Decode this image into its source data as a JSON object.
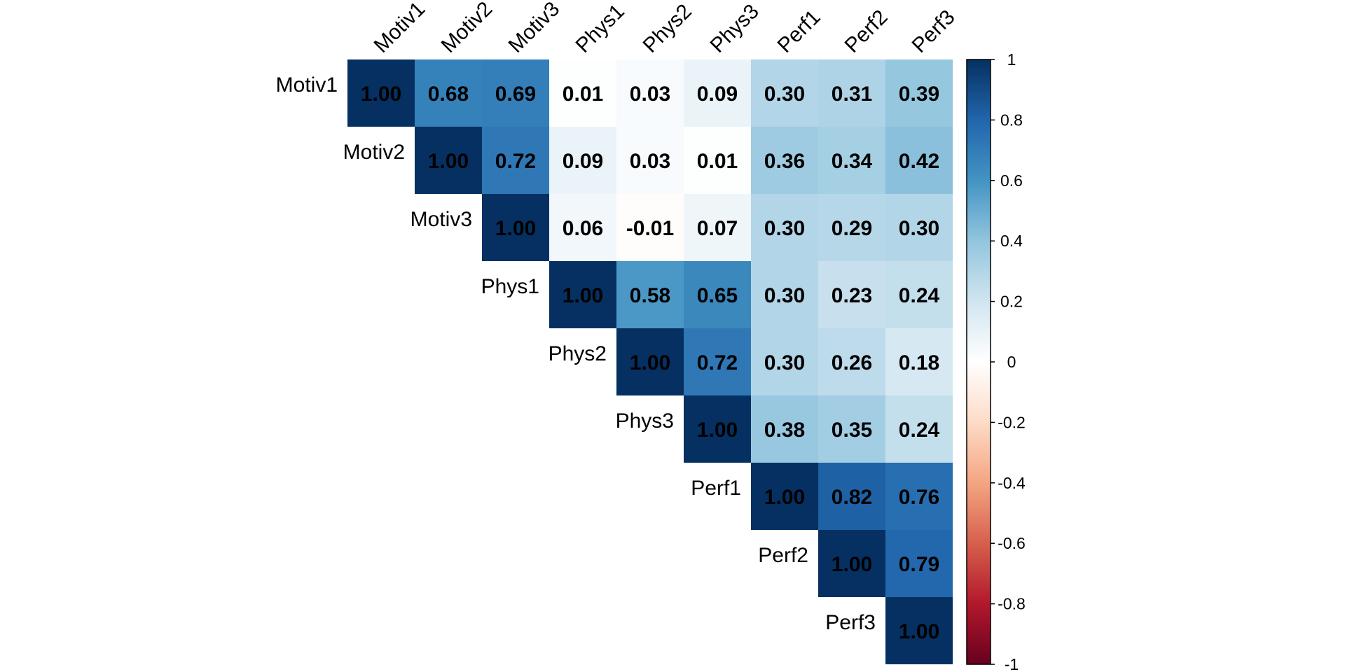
{
  "chart_data": {
    "type": "heatmap",
    "title": "",
    "variables": [
      "Motiv1",
      "Motiv2",
      "Motiv3",
      "Phys1",
      "Phys2",
      "Phys3",
      "Perf1",
      "Perf2",
      "Perf3"
    ],
    "layout": "upper-triangle",
    "matrix": [
      [
        1.0,
        0.68,
        0.69,
        0.01,
        0.03,
        0.09,
        0.3,
        0.31,
        0.39
      ],
      [
        null,
        1.0,
        0.72,
        0.09,
        0.03,
        0.01,
        0.36,
        0.34,
        0.42
      ],
      [
        null,
        null,
        1.0,
        0.06,
        -0.01,
        0.07,
        0.3,
        0.29,
        0.3
      ],
      [
        null,
        null,
        null,
        1.0,
        0.58,
        0.65,
        0.3,
        0.23,
        0.24
      ],
      [
        null,
        null,
        null,
        null,
        1.0,
        0.72,
        0.3,
        0.26,
        0.18
      ],
      [
        null,
        null,
        null,
        null,
        null,
        1.0,
        0.38,
        0.35,
        0.24
      ],
      [
        null,
        null,
        null,
        null,
        null,
        null,
        1.0,
        0.82,
        0.76
      ],
      [
        null,
        null,
        null,
        null,
        null,
        null,
        null,
        1.0,
        0.79
      ],
      [
        null,
        null,
        null,
        null,
        null,
        null,
        null,
        null,
        1.0
      ]
    ],
    "value_format": "2 decimals",
    "colorbar": {
      "range": [
        -1,
        1
      ],
      "ticks": [
        1,
        0.8,
        0.6,
        0.4,
        0.2,
        0,
        -0.2,
        -0.4,
        -0.6,
        -0.8,
        -1
      ],
      "tick_labels": [
        "1",
        "0.8",
        "0.6",
        "0.4",
        "0.2",
        "0",
        "-0.2",
        "-0.4",
        "-0.6",
        "-0.8",
        "-1"
      ],
      "placement": "right",
      "palette": [
        "#67001F",
        "#B2182B",
        "#D6604D",
        "#F4A582",
        "#FDDBC7",
        "#FFFFFF",
        "#D1E5F0",
        "#92C5DE",
        "#4393C3",
        "#2166AC",
        "#053061"
      ]
    },
    "xlabel": "",
    "ylabel": ""
  }
}
